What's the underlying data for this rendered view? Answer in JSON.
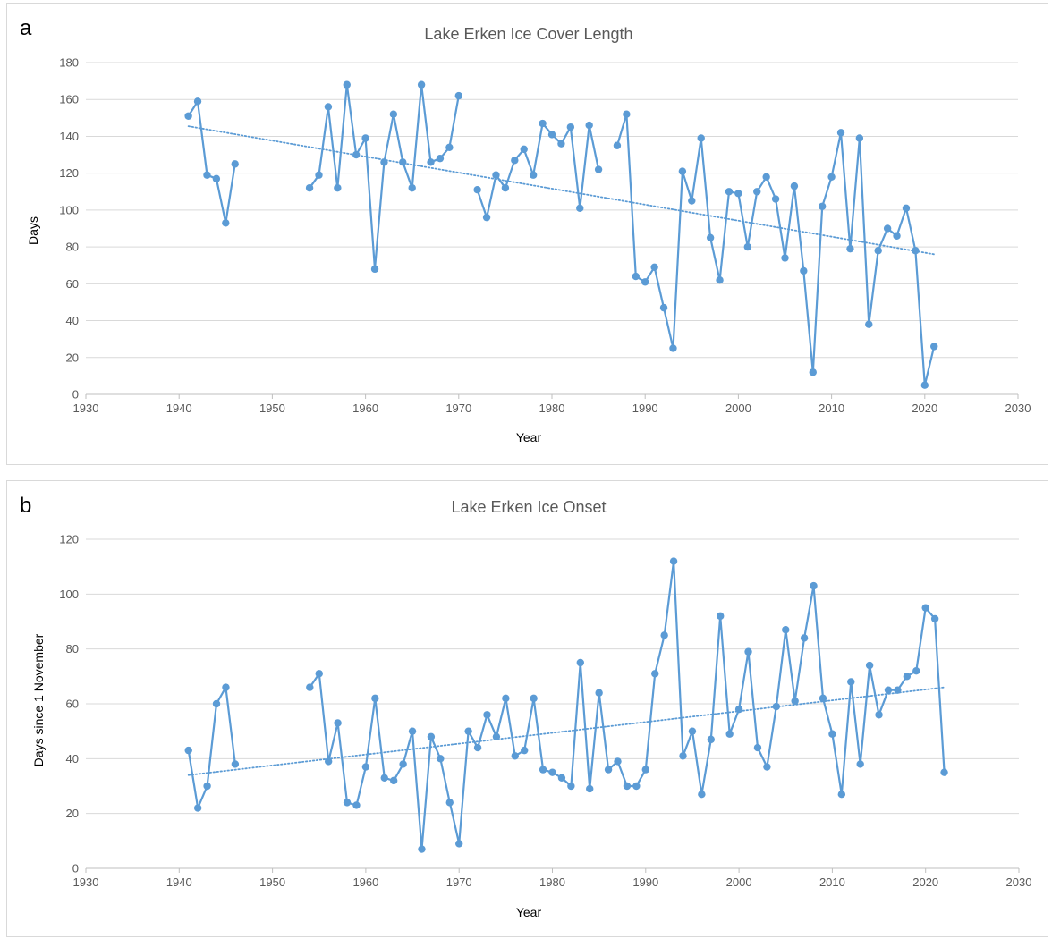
{
  "colors": {
    "series": "#5b9bd5",
    "grid": "#d9d9d9",
    "axis": "#bfbfbf",
    "text": "#595959"
  },
  "chart_data": [
    {
      "panel_label": "a",
      "type": "line",
      "title": "Lake Erken Ice Cover Length",
      "xlabel": "Year",
      "ylabel": "Days",
      "xlim": [
        1930,
        2030
      ],
      "ylim": [
        0,
        180
      ],
      "xticks": [
        1930,
        1940,
        1950,
        1960,
        1970,
        1980,
        1990,
        2000,
        2010,
        2020,
        2030
      ],
      "yticks": [
        0,
        20,
        40,
        60,
        80,
        100,
        120,
        140,
        160,
        180
      ],
      "grid": "horizontal",
      "trendline": {
        "style": "dotted linear",
        "x": [
          1941,
          2021
        ],
        "y": [
          145.5,
          76
        ]
      },
      "segments": [
        {
          "x": [
            1941,
            1942,
            1943,
            1944,
            1945,
            1946
          ],
          "y": [
            151,
            159,
            119,
            117,
            93,
            125
          ]
        },
        {
          "x": [
            1954,
            1955,
            1956,
            1957,
            1958,
            1959,
            1960,
            1961,
            1962,
            1963,
            1964,
            1965,
            1966,
            1967,
            1968,
            1969,
            1970
          ],
          "y": [
            112,
            119,
            156,
            112,
            168,
            130,
            139,
            68,
            126,
            152,
            126,
            112,
            168,
            126,
            128,
            134,
            162
          ]
        },
        {
          "x": [
            1972,
            1973,
            1974,
            1975,
            1976,
            1977,
            1978,
            1979,
            1980,
            1981,
            1982,
            1983,
            1984,
            1985
          ],
          "y": [
            111,
            96,
            119,
            112,
            127,
            133,
            119,
            147,
            141,
            136,
            145,
            101,
            146,
            122
          ]
        },
        {
          "x": [
            1987,
            1988,
            1989,
            1990,
            1991,
            1992,
            1993,
            1994,
            1995,
            1996,
            1997,
            1998,
            1999,
            2000,
            2001,
            2002,
            2003,
            2004,
            2005,
            2006,
            2007,
            2008,
            2009,
            2010,
            2011,
            2012,
            2013,
            2014,
            2015,
            2016,
            2017,
            2018,
            2019,
            2020,
            2021
          ],
          "y": [
            135,
            152,
            64,
            61,
            69,
            47,
            25,
            121,
            105,
            139,
            85,
            62,
            110,
            109,
            80,
            110,
            118,
            106,
            74,
            113,
            67,
            12,
            102,
            118,
            142,
            79,
            139,
            38,
            78,
            90,
            86,
            101,
            78,
            5,
            26
          ]
        }
      ]
    },
    {
      "panel_label": "b",
      "type": "line",
      "title": "Lake Erken Ice Onset",
      "xlabel": "Year",
      "ylabel": "Days since 1 November",
      "xlim": [
        1930,
        2030
      ],
      "ylim": [
        0,
        120
      ],
      "xticks": [
        1930,
        1940,
        1950,
        1960,
        1970,
        1980,
        1990,
        2000,
        2010,
        2020,
        2030
      ],
      "yticks": [
        0,
        20,
        40,
        60,
        80,
        100,
        120
      ],
      "grid": "horizontal",
      "trendline": {
        "style": "dotted linear",
        "x": [
          1941,
          2022
        ],
        "y": [
          34,
          66
        ]
      },
      "segments": [
        {
          "x": [
            1941,
            1942,
            1943,
            1944,
            1945,
            1946
          ],
          "y": [
            43,
            22,
            30,
            60,
            66,
            38
          ]
        },
        {
          "x": [
            1954,
            1955,
            1956,
            1957,
            1958,
            1959,
            1960,
            1961,
            1962,
            1963,
            1964,
            1965,
            1966,
            1967,
            1968,
            1969,
            1970,
            1971,
            1972,
            1973,
            1974,
            1975,
            1976,
            1977,
            1978,
            1979,
            1980,
            1981,
            1982,
            1983,
            1984,
            1985,
            1986,
            1987,
            1988,
            1989,
            1990,
            1991,
            1992,
            1993,
            1994,
            1995,
            1996,
            1997,
            1998,
            1999,
            2000,
            2001,
            2002,
            2003,
            2004,
            2005,
            2006,
            2007,
            2008,
            2009,
            2010,
            2011,
            2012,
            2013,
            2014,
            2015,
            2016,
            2017,
            2018,
            2019,
            2020,
            2021,
            2022
          ],
          "y": [
            66,
            71,
            39,
            53,
            24,
            23,
            37,
            62,
            33,
            32,
            38,
            50,
            7,
            48,
            40,
            24,
            9,
            50,
            44,
            56,
            48,
            62,
            41,
            43,
            62,
            36,
            35,
            33,
            30,
            75,
            29,
            64,
            36,
            39,
            30,
            30,
            36,
            71,
            85,
            112,
            41,
            50,
            27,
            47,
            92,
            49,
            58,
            79,
            44,
            37,
            59,
            87,
            61,
            84,
            103,
            62,
            49,
            27,
            68,
            38,
            74,
            56,
            65,
            65,
            70,
            72,
            95,
            91,
            35
          ]
        }
      ]
    }
  ]
}
